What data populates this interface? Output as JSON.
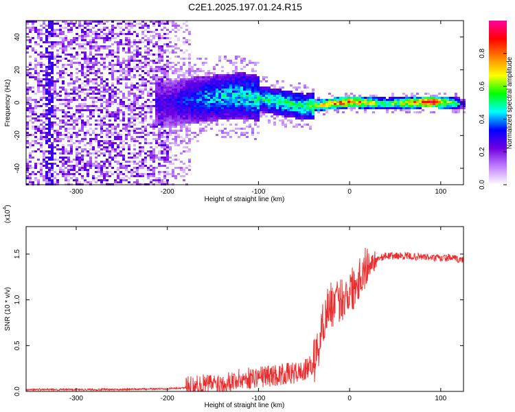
{
  "title": "C2E1.2025.197.01.24.R15",
  "chart_data": [
    {
      "type": "heatmap",
      "xlabel": "Height of straight line (km)",
      "ylabel": "Frequency (Hz)",
      "xlim": [
        -355,
        125
      ],
      "ylim": [
        -50,
        50
      ],
      "x_ticks": [
        "-300",
        "-200",
        "-100",
        "0",
        "100"
      ],
      "y_ticks": [
        "-40",
        "-20",
        "0",
        "20",
        "40"
      ],
      "colorbar": {
        "label": "Normalized spectral amplitude",
        "range": [
          0,
          1
        ],
        "ticks": [
          "0.0",
          "0.2",
          "0.4",
          "0.6",
          "0.8"
        ],
        "colors": [
          "#ffffff",
          "#c080ff",
          "#7000e0",
          "#0000ff",
          "#00ffff",
          "#00ff00",
          "#ffff00",
          "#ff8000",
          "#ff0000",
          "#ff00a0"
        ]
      },
      "grid": false,
      "description_points": [
        {
          "x": -350,
          "y": 0,
          "v": 0.35
        },
        {
          "x": -250,
          "y": 0,
          "v": 0.3
        },
        {
          "x": -200,
          "y": 0,
          "v": 0.3
        },
        {
          "x": -160,
          "y": 3,
          "v": 0.45
        },
        {
          "x": -120,
          "y": 5,
          "v": 0.5
        },
        {
          "x": -80,
          "y": 1,
          "v": 0.55
        },
        {
          "x": -50,
          "y": -2,
          "v": 0.55
        },
        {
          "x": -20,
          "y": 0,
          "v": 0.85
        },
        {
          "x": 0,
          "y": 1,
          "v": 0.9
        },
        {
          "x": 40,
          "y": 0,
          "v": 0.6
        },
        {
          "x": 90,
          "y": 1,
          "v": 1.0
        },
        {
          "x": 120,
          "y": 0,
          "v": 0.5
        }
      ]
    },
    {
      "type": "line",
      "xlabel": "Height of straight line (km)",
      "ylabel": "SNR (10 * v/v)",
      "y_multiplier": "(x10",
      "y_multiplier_exp": "4",
      "y_multiplier_close": ")",
      "xlim": [
        -355,
        125
      ],
      "ylim": [
        0,
        1.8
      ],
      "x_ticks": [
        "-300",
        "-200",
        "-100",
        "0",
        "100"
      ],
      "y_ticks": [
        "0.0",
        "0.5",
        "1.0",
        "1.5"
      ],
      "grid": false,
      "series": [
        {
          "color": "#e83030",
          "x": [
            -355,
            -300,
            -250,
            -200,
            -180,
            -160,
            -140,
            -120,
            -100,
            -80,
            -60,
            -50,
            -40,
            -35,
            -30,
            -25,
            -20,
            -15,
            -10,
            -5,
            0,
            5,
            10,
            20,
            30,
            40,
            50,
            60,
            70,
            80,
            90,
            100,
            110,
            125
          ],
          "y": [
            0.02,
            0.02,
            0.02,
            0.03,
            0.04,
            0.07,
            0.1,
            0.13,
            0.16,
            0.18,
            0.2,
            0.22,
            0.3,
            0.45,
            0.7,
            0.9,
            0.95,
            0.95,
            1.0,
            1.05,
            1.1,
            1.15,
            1.25,
            1.38,
            1.45,
            1.48,
            1.48,
            1.48,
            1.47,
            1.47,
            1.46,
            1.45,
            1.46,
            1.43
          ]
        }
      ]
    }
  ]
}
